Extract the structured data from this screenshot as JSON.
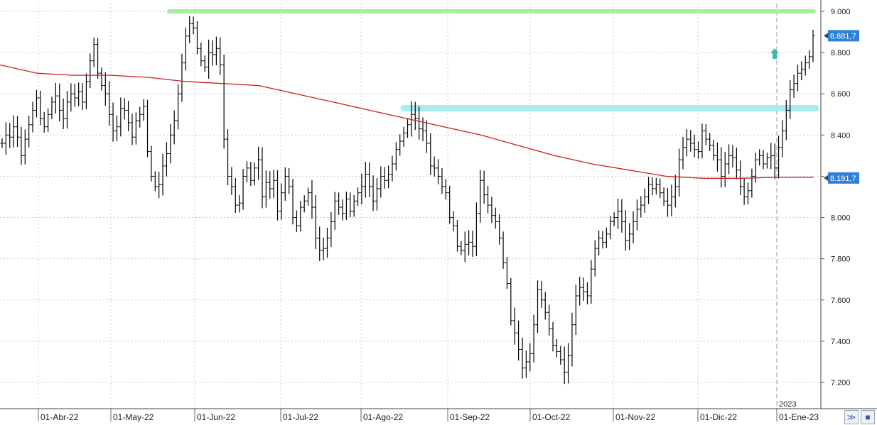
{
  "chart_data": {
    "type": "bar",
    "subtype": "ohlc",
    "title": "",
    "xlabel": "",
    "ylabel": "",
    "ylim": [
      7150,
      9060
    ],
    "y_ticks": [
      9000,
      8800,
      8600,
      8400,
      8200,
      8000,
      7800,
      7600,
      7400,
      7200
    ],
    "y_tick_labels": [
      "9.000",
      "8.800",
      "8.600",
      "8.400",
      "8.200",
      "8.000",
      "7.800",
      "7.600",
      "7.400",
      "7.200"
    ],
    "x_labels": [
      "01-Abr-22",
      "01-May-22",
      "01-Jun-22",
      "01-Jul-22",
      "01-Ago-22",
      "01-Sep-22",
      "01-Oct-22",
      "01-Nov-22",
      "01-Dic-22",
      "01-Ene-23"
    ],
    "year_label": "2023",
    "grid": true,
    "colors": {
      "bars": "#000000",
      "moving_average": "#cc1f1f",
      "resistance_top": "#a6ef9e",
      "resistance_mid": "#a9ecf0",
      "price_tag": "#2e7fd9",
      "arrow": "#3ab9b0",
      "grid": "#cccccc"
    },
    "last_price": 8881.7,
    "last_price_label": "8.881,7",
    "ma_last": 8191.7,
    "ma_last_label": "8.191,7",
    "horizontal_levels": [
      9000,
      8530
    ],
    "moving_average": [
      8740,
      8700,
      8690,
      8690,
      8680,
      8660,
      8650,
      8640,
      8600,
      8560,
      8520,
      8480,
      8440,
      8400,
      8350,
      8300,
      8260,
      8230,
      8200,
      8190,
      8190,
      8195,
      8195
    ],
    "daily_closes": [
      8360,
      8400,
      8390,
      8440,
      8390,
      8300,
      8380,
      8450,
      8520,
      8580,
      8480,
      8440,
      8500,
      8560,
      8590,
      8520,
      8480,
      8560,
      8600,
      8580,
      8610,
      8560,
      8660,
      8760,
      8840,
      8700,
      8640,
      8600,
      8500,
      8420,
      8440,
      8530,
      8520,
      8460,
      8390,
      8470,
      8500,
      8540,
      8320,
      8200,
      8150,
      8160,
      8250,
      8310,
      8400,
      8470,
      8600,
      8750,
      8880,
      8940,
      8920,
      8820,
      8760,
      8730,
      8800,
      8790,
      8820,
      8740,
      8380,
      8200,
      8150,
      8060,
      8070,
      8200,
      8240,
      8180,
      8240,
      8280,
      8100,
      8170,
      8140,
      8180,
      8030,
      8120,
      8200,
      8150,
      8000,
      7960,
      8050,
      8080,
      8120,
      8050,
      7900,
      7840,
      7850,
      7900,
      7980,
      8080,
      8050,
      8020,
      8090,
      8030,
      8080,
      8120,
      8150,
      8210,
      8150,
      8080,
      8140,
      8200,
      8180,
      8210,
      8260,
      8330,
      8370,
      8410,
      8450,
      8500,
      8480,
      8430,
      8420,
      8360,
      8250,
      8240,
      8200,
      8150,
      8120,
      8000,
      7960,
      7860,
      7840,
      7870,
      7880,
      7860,
      8020,
      8180,
      8110,
      8060,
      8010,
      7980,
      7900,
      7780,
      7680,
      7500,
      7440,
      7360,
      7270,
      7300,
      7340,
      7480,
      7650,
      7600,
      7540,
      7460,
      7380,
      7350,
      7310,
      7250,
      7330,
      7480,
      7620,
      7660,
      7640,
      7620,
      7750,
      7850,
      7900,
      7880,
      7920,
      7980,
      8000,
      8030,
      7980,
      7890,
      7920,
      7980,
      8040,
      8060,
      8100,
      8160,
      8140,
      8160,
      8120,
      8080,
      8060,
      8100,
      8150,
      8280,
      8340,
      8380,
      8360,
      8330,
      8320,
      8420,
      8380,
      8350,
      8300,
      8280,
      8200,
      8260,
      8300,
      8290,
      8230,
      8150,
      8100,
      8130,
      8200,
      8280,
      8300,
      8260,
      8290,
      8300,
      8240,
      8340,
      8420,
      8520,
      8620,
      8650,
      8700,
      8720,
      8750,
      8780,
      8881.7
    ]
  },
  "controls": {
    "collapse_label": "≫",
    "save_label": "■"
  }
}
